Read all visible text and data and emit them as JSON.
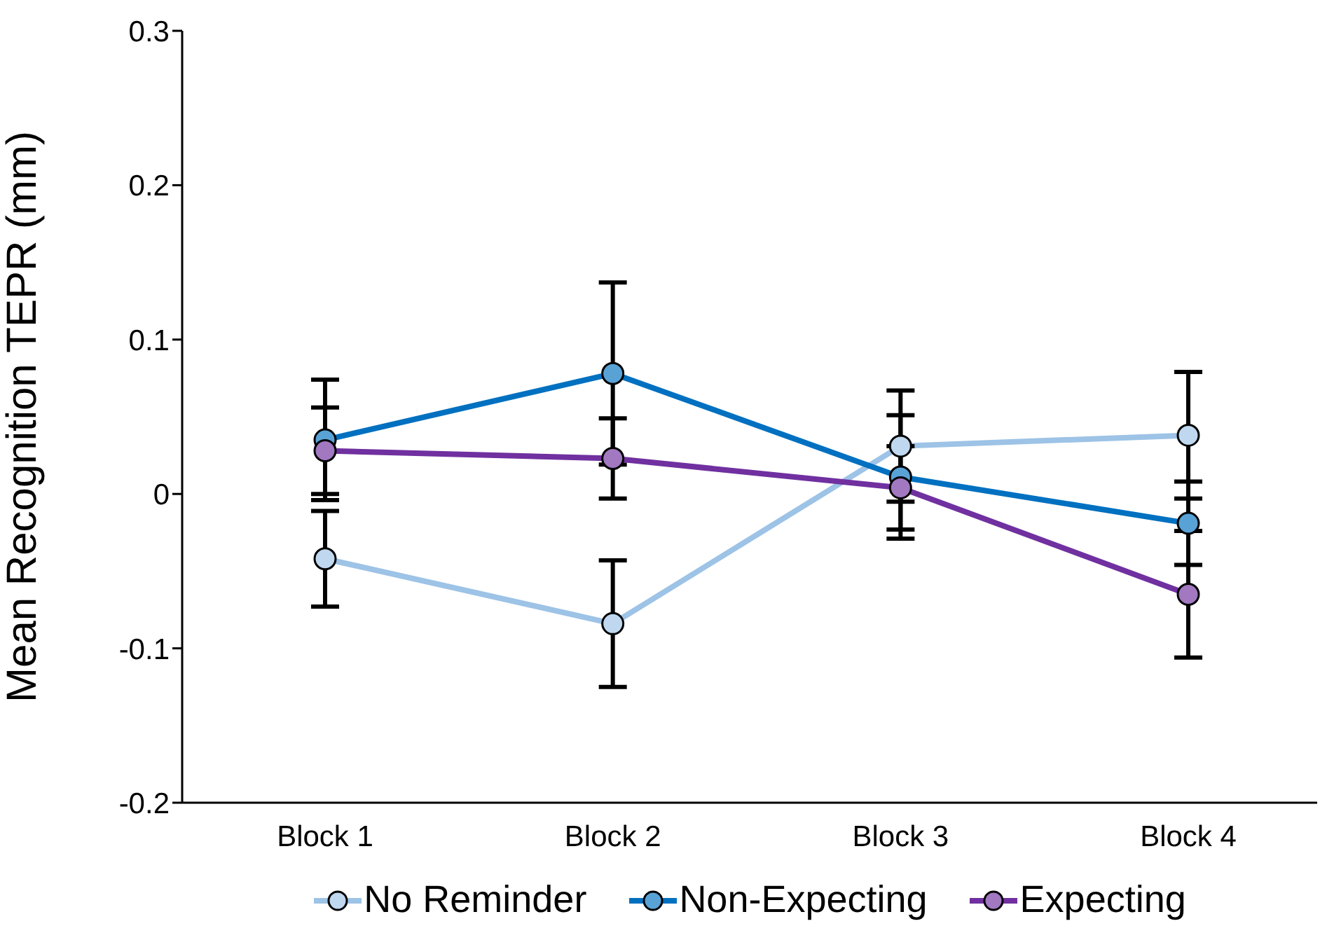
{
  "chart_data": {
    "type": "line",
    "ylabel": "Mean Recognition TEPR (mm)",
    "categories": [
      "Block 1",
      "Block 2",
      "Block 3",
      "Block 4"
    ],
    "series": [
      {
        "name": "No Reminder",
        "color": "#9dc3e6",
        "values": [
          -0.042,
          -0.084,
          0.031,
          0.038
        ],
        "errors": [
          0.031,
          0.041,
          0.036,
          0.041
        ]
      },
      {
        "name": "Non-Expecting",
        "color": "#0070c0",
        "values": [
          0.035,
          0.078,
          0.011,
          -0.019
        ],
        "errors": [
          0.039,
          0.059,
          0.04,
          0.027
        ]
      },
      {
        "name": "Expecting",
        "color": "#7030a0",
        "values": [
          0.028,
          0.023,
          0.004,
          -0.065
        ],
        "errors": [
          0.028,
          0.026,
          0.027,
          0.041
        ]
      }
    ],
    "ylim": [
      -0.2,
      0.3
    ],
    "yticks": [
      {
        "value": -0.2,
        "label": "-0.2"
      },
      {
        "value": -0.1,
        "label": "-0.1"
      },
      {
        "value": 0,
        "label": "0"
      },
      {
        "value": 0.1,
        "label": "0.1"
      },
      {
        "value": 0.2,
        "label": "0.2"
      },
      {
        "value": 0.3,
        "label": "0.3"
      }
    ],
    "grid": false,
    "legend": "bottom",
    "marker": "circle",
    "line_style": "solid"
  }
}
